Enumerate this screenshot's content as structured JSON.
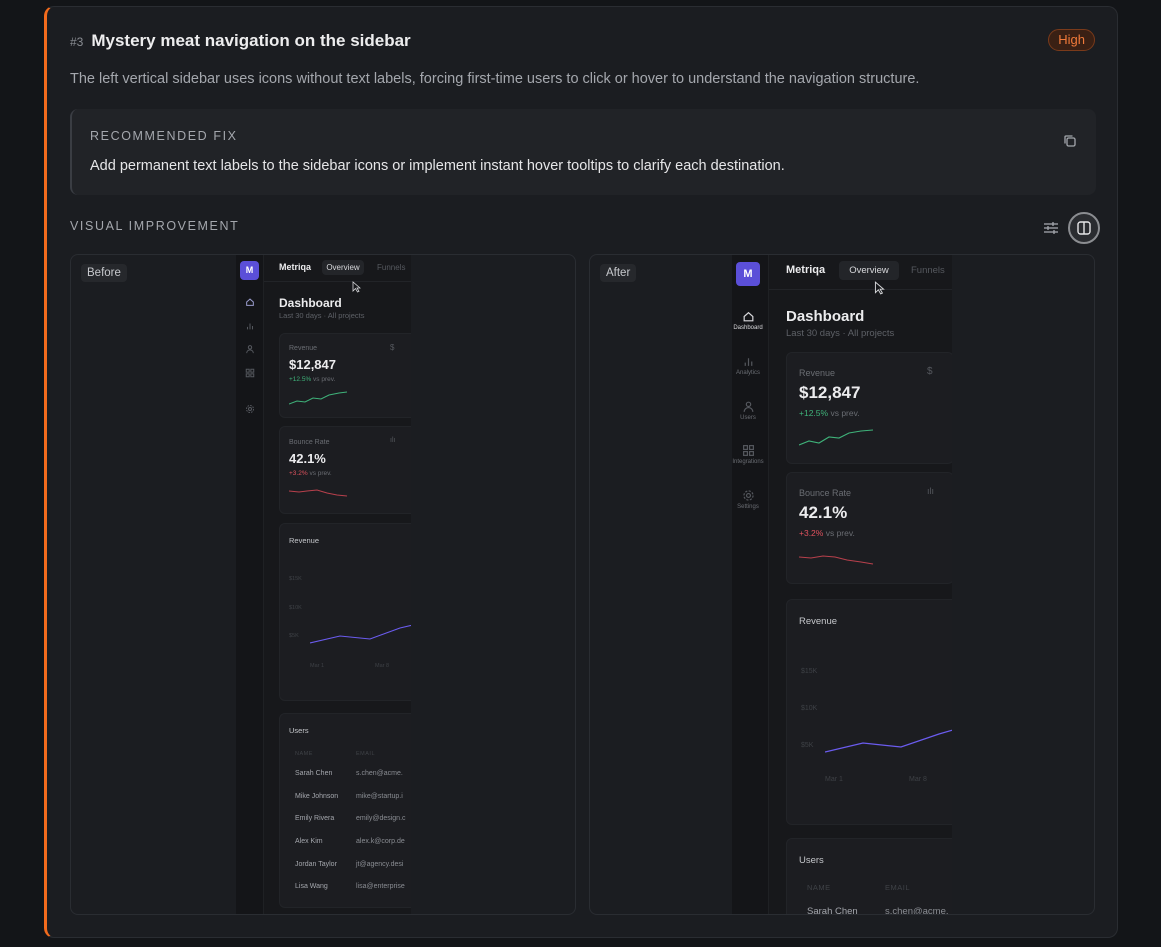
{
  "issue": {
    "number": "#3",
    "title": "Mystery meat navigation on the sidebar",
    "severity": "High",
    "description": "The left vertical sidebar uses icons without text labels, forcing first-time users to click or hover to understand the navigation structure."
  },
  "fix": {
    "label": "RECOMMENDED FIX",
    "text": "Add permanent text labels to the sidebar icons or implement instant hover tooltips to clarify each destination.",
    "copy_icon": "copy-icon"
  },
  "visual": {
    "label": "VISUAL IMPROVEMENT",
    "tools": [
      "sliders-icon",
      "split-view-icon"
    ]
  },
  "panels": {
    "before_label": "Before",
    "after_label": "After"
  },
  "app": {
    "logo": "M",
    "brand": "Metriqa",
    "tabs": [
      "Overview",
      "Funnels"
    ],
    "nav": [
      {
        "icon": "home-icon",
        "label": "Dashboard"
      },
      {
        "icon": "bar-chart-icon",
        "label": "Analytics"
      },
      {
        "icon": "user-icon",
        "label": "Users"
      },
      {
        "icon": "grid-icon",
        "label": "Integrations"
      },
      {
        "icon": "gear-icon",
        "label": "Settings"
      }
    ],
    "heading": "Dashboard",
    "subheading": "Last 30 days · All projects",
    "revenue": {
      "label": "Revenue",
      "value": "$12,847",
      "delta": "+12.5%",
      "suffix": "vs prev.",
      "icon": "$"
    },
    "bounce": {
      "label": "Bounce Rate",
      "value": "42.1%",
      "delta": "+3.2%",
      "suffix": "vs prev."
    },
    "chart": {
      "title": "Revenue",
      "y_ticks": [
        "$15K",
        "$10K",
        "$5K"
      ],
      "x_ticks": [
        "Mar 1",
        "Mar 8"
      ]
    },
    "users": {
      "title": "Users",
      "columns": [
        "NAME",
        "EMAIL"
      ],
      "rows": [
        {
          "name": "Sarah Chen",
          "email": "s.chen@acme."
        },
        {
          "name": "Mike Johnson",
          "email": "mike@startup.i"
        },
        {
          "name": "Emily Rivera",
          "email": "emily@design.c"
        },
        {
          "name": "Alex Kim",
          "email": "alex.k@corp.de"
        },
        {
          "name": "Jordan Taylor",
          "email": "jt@agency.desi"
        },
        {
          "name": "Lisa Wang",
          "email": "lisa@enterprise"
        }
      ]
    }
  },
  "colors": {
    "accent": "#f26b1d",
    "brand": "#5b4fd8",
    "positive": "#3fb37a",
    "negative": "#e0525e",
    "chart_line": "#6b5cf0"
  }
}
